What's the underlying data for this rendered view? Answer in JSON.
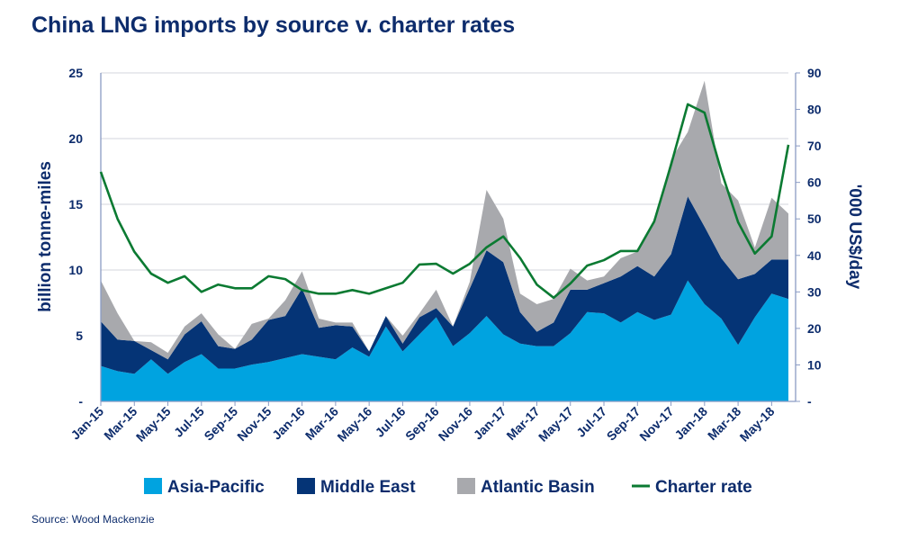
{
  "title": "China LNG imports by source v. charter rates",
  "source": "Source: Wood Mackenzie",
  "chart_data": {
    "type": "area",
    "title": "China LNG imports by source v. charter rates",
    "ylabel": "billion tonne-miles",
    "y2label": "'000 US$/day",
    "ylim": [
      0,
      25
    ],
    "y2lim": [
      0,
      90
    ],
    "yticks": [
      "-",
      "5",
      "10",
      "15",
      "20",
      "25"
    ],
    "y2ticks": [
      "-",
      "10",
      "20",
      "30",
      "40",
      "50",
      "60",
      "70",
      "80",
      "90"
    ],
    "grid": true,
    "legend": "bottom",
    "categories": [
      "Jan-15",
      "Feb-15",
      "Mar-15",
      "Apr-15",
      "May-15",
      "Jun-15",
      "Jul-15",
      "Aug-15",
      "Sep-15",
      "Oct-15",
      "Nov-15",
      "Dec-15",
      "Jan-16",
      "Feb-16",
      "Mar-16",
      "Apr-16",
      "May-16",
      "Jun-16",
      "Jul-16",
      "Aug-16",
      "Sep-16",
      "Oct-16",
      "Nov-16",
      "Dec-16",
      "Jan-17",
      "Feb-17",
      "Mar-17",
      "Apr-17",
      "May-17",
      "Jun-17",
      "Jul-17",
      "Aug-17",
      "Sep-17",
      "Oct-17",
      "Nov-17",
      "Dec-17",
      "Jan-18",
      "Feb-18",
      "Mar-18",
      "Apr-18",
      "May-18",
      "Jun-18"
    ],
    "xticks": [
      "Jan-15",
      "Mar-15",
      "May-15",
      "Jul-15",
      "Sep-15",
      "Nov-15",
      "Jan-16",
      "Mar-16",
      "May-16",
      "Jul-16",
      "Sep-16",
      "Nov-16",
      "Jan-17",
      "Mar-17",
      "May-17",
      "Jul-17",
      "Sep-17",
      "Nov-17",
      "Jan-18",
      "Mar-18",
      "May-18"
    ],
    "series": [
      {
        "name": "Asia-Pacific",
        "type": "stacked-area",
        "axis": "left",
        "color": "#00a3e0",
        "values": [
          2.7,
          2.3,
          2.1,
          3.2,
          2.1,
          3.0,
          3.6,
          2.5,
          2.5,
          2.8,
          3.0,
          3.3,
          3.6,
          3.4,
          3.2,
          4.1,
          3.4,
          5.7,
          3.8,
          5.1,
          6.4,
          4.2,
          5.2,
          6.5,
          5.1,
          4.4,
          4.2,
          4.2,
          5.2,
          6.8,
          6.7,
          6.0,
          6.8,
          6.2,
          6.6,
          9.2,
          7.4,
          6.3,
          4.3,
          6.4,
          8.2,
          7.8
        ]
      },
      {
        "name": "Middle East",
        "type": "stacked-area",
        "axis": "left",
        "color": "#053476",
        "values": [
          3.4,
          2.4,
          2.5,
          0.7,
          1.1,
          2.1,
          2.5,
          1.7,
          1.5,
          1.9,
          3.2,
          3.2,
          5.0,
          2.2,
          2.6,
          1.6,
          0.4,
          0.8,
          0.6,
          1.3,
          0.7,
          1.5,
          3.4,
          5.0,
          5.5,
          2.4,
          1.1,
          1.8,
          3.3,
          1.7,
          2.3,
          3.5,
          3.5,
          3.3,
          4.6,
          6.4,
          5.9,
          4.6,
          5.0,
          3.3,
          2.6,
          3.0
        ]
      },
      {
        "name": "Atlantic Basin",
        "type": "stacked-area",
        "axis": "left",
        "color": "#a8a9ad",
        "values": [
          3.1,
          2.0,
          0.0,
          0.6,
          0.5,
          0.6,
          0.6,
          0.9,
          0.0,
          1.2,
          0.1,
          1.2,
          1.3,
          0.7,
          0.2,
          0.3,
          0.0,
          0.0,
          0.6,
          0.3,
          1.4,
          0.0,
          0.5,
          4.6,
          3.3,
          1.4,
          2.1,
          1.8,
          1.6,
          0.7,
          0.5,
          1.4,
          1.1,
          4.1,
          7.2,
          4.9,
          11.1,
          5.7,
          6.0,
          2.0,
          4.7,
          3.5
        ]
      },
      {
        "name": "Charter rate",
        "type": "line",
        "axis": "right",
        "color": "#0b7a32",
        "values": [
          62.9,
          50,
          41,
          35,
          32.5,
          34.3,
          30,
          32,
          31,
          31,
          34.3,
          33.5,
          30.5,
          29.5,
          29.5,
          30.5,
          29.5,
          31,
          32.5,
          37.5,
          37.7,
          35,
          37.7,
          42.2,
          45.2,
          39.3,
          32,
          28.4,
          32.3,
          37.2,
          38.7,
          41.2,
          41.2,
          49.3,
          64.8,
          81.4,
          79.1,
          63.1,
          49.1,
          40.5,
          45.2,
          70.3
        ]
      }
    ]
  }
}
